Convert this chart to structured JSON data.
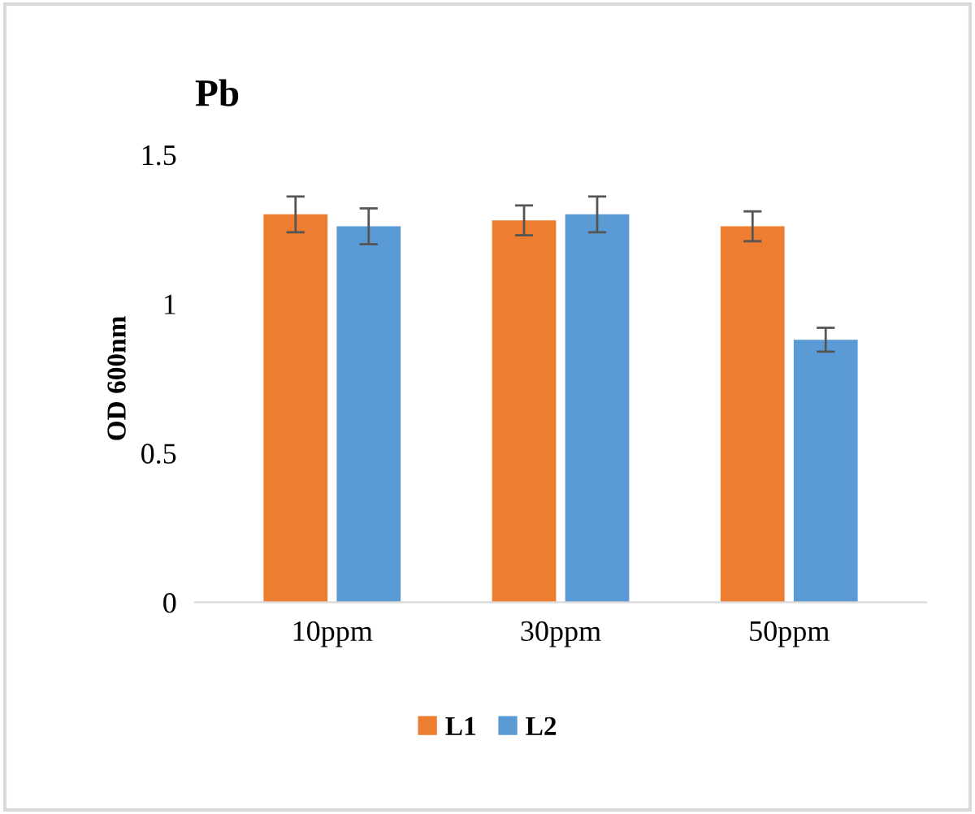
{
  "chart_data": {
    "type": "bar",
    "title": "Pb",
    "ylabel": "OD 600nm",
    "categories": [
      "10ppm",
      "30ppm",
      "50ppm"
    ],
    "series": [
      {
        "name": "L1",
        "color": "#ed7d31",
        "values": [
          1.3,
          1.28,
          1.26
        ],
        "errors": [
          0.06,
          0.05,
          0.05
        ]
      },
      {
        "name": "L2",
        "color": "#5b9bd5",
        "values": [
          1.26,
          1.3,
          0.88
        ],
        "errors": [
          0.06,
          0.06,
          0.04
        ]
      }
    ],
    "ylim": [
      0,
      1.5
    ],
    "yticks": [
      0,
      0.5,
      1,
      1.5
    ],
    "grid": false,
    "legend": "bottom"
  }
}
